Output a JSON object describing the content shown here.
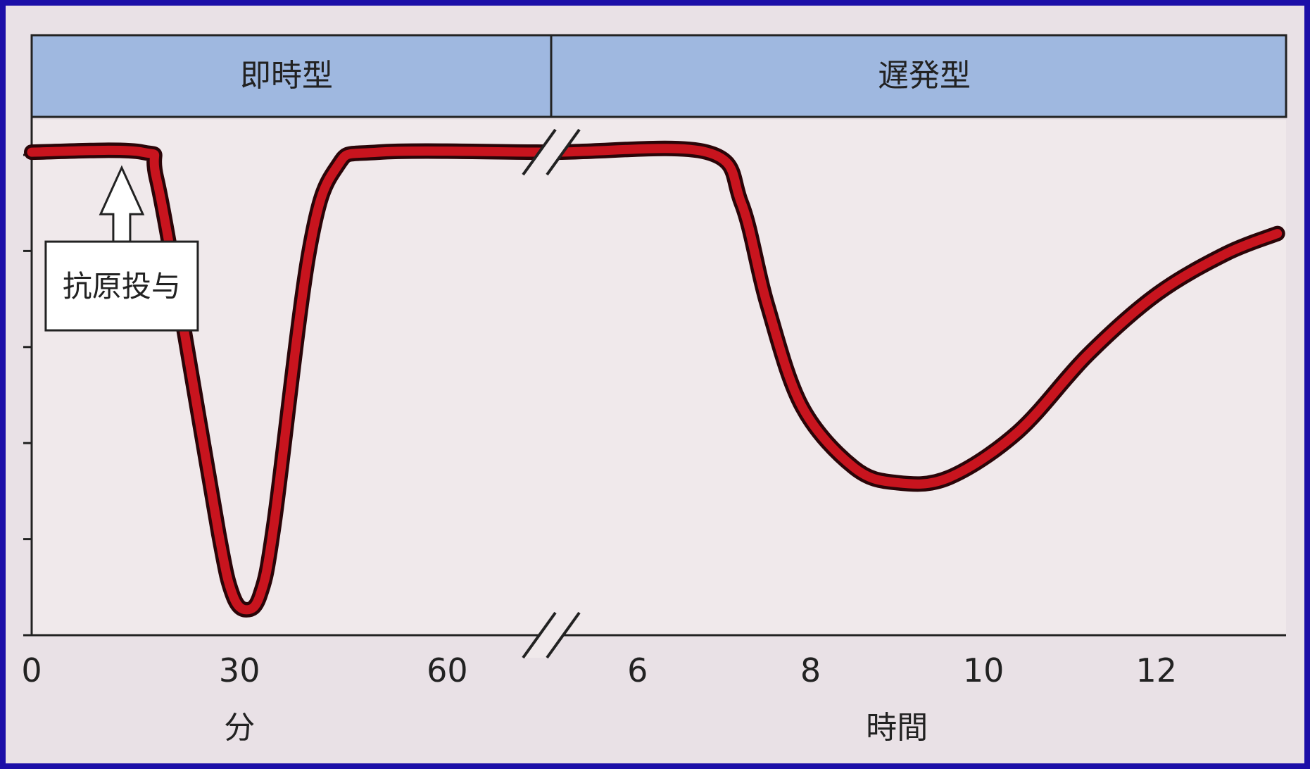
{
  "chart_data": {
    "type": "line",
    "title": "",
    "phases": [
      {
        "label": "即時型"
      },
      {
        "label": "遅発型"
      }
    ],
    "x_segments": [
      {
        "unit": "分",
        "ticks": [
          0,
          30,
          60
        ],
        "range": [
          0,
          75
        ]
      },
      {
        "unit": "時間",
        "ticks": [
          6,
          8,
          10,
          12
        ],
        "range": [
          5,
          13.5
        ]
      }
    ],
    "ylim": [
      0,
      100
    ],
    "y_tick_count": 5,
    "y_axis_values_shown": false,
    "axis_break": true,
    "grid": false,
    "series": [
      {
        "color": "#c8141e",
        "segment_points": [
          [
            [
              0,
              95
            ],
            [
              16,
              95
            ],
            [
              18,
              90
            ],
            [
              22,
              60
            ],
            [
              27,
              20
            ],
            [
              29,
              8
            ],
            [
              31,
              5
            ],
            [
              33,
              8
            ],
            [
              35,
              22
            ],
            [
              40,
              75
            ],
            [
              44,
              92
            ],
            [
              50,
              95
            ],
            [
              75,
              95
            ]
          ],
          [
            [
              5,
              95
            ],
            [
              6.8,
              95
            ],
            [
              7.2,
              85
            ],
            [
              7.5,
              65
            ],
            [
              7.9,
              45
            ],
            [
              8.5,
              33
            ],
            [
              9.0,
              30
            ],
            [
              9.6,
              31
            ],
            [
              10.4,
              40
            ],
            [
              11.2,
              55
            ],
            [
              12.0,
              67
            ],
            [
              12.8,
              75
            ],
            [
              13.4,
              79
            ]
          ]
        ]
      }
    ],
    "annotations": [
      {
        "text": "抗原投与",
        "x_segment": 0,
        "x": 13,
        "y": 95,
        "arrow": "up"
      }
    ],
    "colors": {
      "background": "#1c0fa8",
      "plot_area": "#f0e9eb",
      "phase_header": "#9fb8e0",
      "line": "#c8141e",
      "line_outline": "#2a0508"
    }
  }
}
